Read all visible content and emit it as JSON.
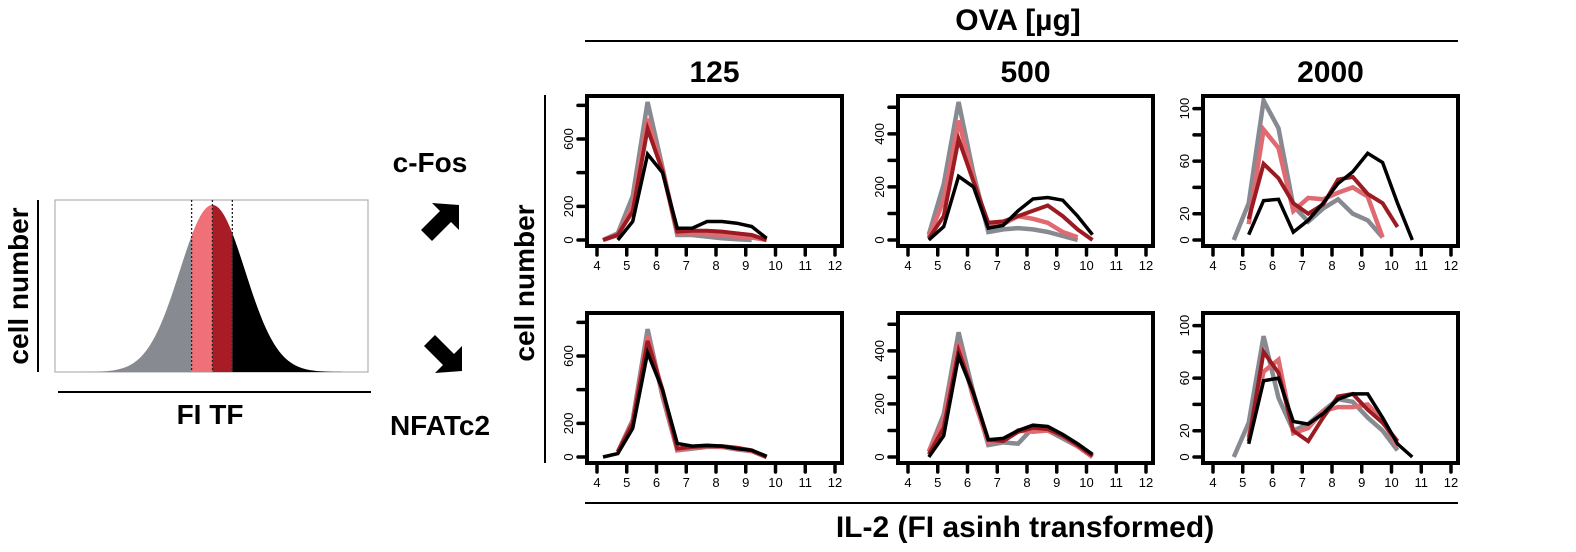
{
  "figure": {
    "top_header": "OVA [µg]",
    "bottom_label": "IL-2 (FI asinh transformed)",
    "grid_ylabel": "cell number",
    "arrow_up_label": "c-Fos",
    "arrow_down_label": "NFATc2"
  },
  "legend_colors": {
    "gray": "#878b91",
    "pink": "#e06a72",
    "darkred": "#9b1b22",
    "black": "#000000"
  },
  "chart_data": [
    {
      "type": "area",
      "id": "tf-histogram",
      "title": "",
      "xlabel": "FI TF",
      "ylabel": "cell number",
      "description": "Normal-shaped histogram of transcription factor fluorescence split into four quantile bins by dotted cut lines",
      "bins": [
        {
          "name": "lowest",
          "color": "#878b91",
          "from": 0.0,
          "to": 0.436
        },
        {
          "name": "low-mid",
          "color": "#f07078",
          "from": 0.436,
          "to": 0.503
        },
        {
          "name": "high-mid",
          "color": "#a81c26",
          "from": 0.503,
          "to": 0.567
        },
        {
          "name": "highest",
          "color": "#000000",
          "from": 0.567,
          "to": 1.0
        }
      ],
      "curve": {
        "mean": 0.503,
        "sd": 0.105
      },
      "cut_lines": [
        0.436,
        0.503,
        0.567
      ]
    },
    {
      "type": "line",
      "id": "panel-cfos-125",
      "row": "c-Fos",
      "title": "125",
      "xlim": [
        4,
        12
      ],
      "ylim": [
        0,
        820
      ],
      "xticks": [
        4,
        5,
        6,
        7,
        8,
        9,
        10,
        11,
        12
      ],
      "yticks": [
        0,
        200,
        400,
        600,
        800
      ],
      "ytick_labels": [
        "0",
        "200",
        "",
        "600",
        ""
      ],
      "series": [
        {
          "name": "gray",
          "x": [
            4.2,
            4.7,
            5.2,
            5.7,
            6.2,
            6.7,
            7.2,
            7.7,
            8.2,
            8.7,
            9.2
          ],
          "y": [
            0,
            40,
            260,
            820,
            430,
            30,
            30,
            20,
            10,
            5,
            0
          ]
        },
        {
          "name": "pink",
          "x": [
            4.2,
            4.7,
            5.2,
            5.7,
            6.2,
            6.7,
            7.2,
            7.7,
            8.2,
            8.7,
            9.2,
            9.7
          ],
          "y": [
            0,
            30,
            200,
            720,
            420,
            40,
            40,
            35,
            30,
            20,
            15,
            0
          ]
        },
        {
          "name": "darkred",
          "x": [
            4.2,
            4.7,
            5.2,
            5.7,
            6.2,
            6.7,
            7.2,
            7.7,
            8.2,
            8.7,
            9.2,
            9.7
          ],
          "y": [
            0,
            30,
            170,
            660,
            410,
            50,
            55,
            55,
            50,
            40,
            30,
            0
          ]
        },
        {
          "name": "black",
          "x": [
            4.7,
            5.2,
            5.7,
            6.2,
            6.7,
            7.2,
            7.7,
            8.2,
            8.7,
            9.2,
            9.7
          ],
          "y": [
            0,
            110,
            510,
            400,
            70,
            70,
            110,
            110,
            100,
            80,
            10
          ]
        }
      ]
    },
    {
      "type": "line",
      "id": "panel-cfos-500",
      "row": "c-Fos",
      "title": "500",
      "xlim": [
        4,
        12
      ],
      "ylim": [
        0,
        520
      ],
      "xticks": [
        4,
        5,
        6,
        7,
        8,
        9,
        10,
        11,
        12
      ],
      "yticks": [
        0,
        100,
        200,
        300,
        400,
        500
      ],
      "ytick_labels": [
        "0",
        "",
        "200",
        "",
        "400",
        ""
      ],
      "series": [
        {
          "name": "gray",
          "x": [
            4.7,
            5.2,
            5.7,
            6.2,
            6.7,
            7.2,
            7.7,
            8.2,
            8.7,
            9.2,
            9.7
          ],
          "y": [
            20,
            210,
            520,
            250,
            30,
            40,
            45,
            40,
            30,
            15,
            0
          ]
        },
        {
          "name": "pink",
          "x": [
            4.7,
            5.2,
            5.7,
            6.2,
            6.7,
            7.2,
            7.7,
            8.2,
            8.7,
            9.2,
            9.7
          ],
          "y": [
            10,
            150,
            450,
            230,
            50,
            60,
            90,
            80,
            65,
            30,
            10
          ]
        },
        {
          "name": "darkred",
          "x": [
            4.7,
            5.2,
            5.7,
            6.2,
            6.7,
            7.2,
            7.7,
            8.2,
            8.7,
            9.2,
            9.7,
            10.2
          ],
          "y": [
            5,
            90,
            380,
            220,
            65,
            70,
            90,
            110,
            130,
            90,
            40,
            0
          ]
        },
        {
          "name": "black",
          "x": [
            4.7,
            5.2,
            5.7,
            6.2,
            6.7,
            7.2,
            7.7,
            8.2,
            8.7,
            9.2,
            9.7,
            10.2
          ],
          "y": [
            0,
            50,
            240,
            200,
            45,
            55,
            110,
            155,
            160,
            150,
            90,
            20
          ]
        }
      ]
    },
    {
      "type": "line",
      "id": "panel-cfos-2000",
      "row": "c-Fos",
      "title": "2000",
      "xlim": [
        4,
        12
      ],
      "ylim": [
        0,
        105
      ],
      "xticks": [
        4,
        5,
        6,
        7,
        8,
        9,
        10,
        11,
        12
      ],
      "yticks": [
        0,
        20,
        40,
        60,
        80,
        100
      ],
      "ytick_labels": [
        "0",
        "20",
        "",
        "60",
        "",
        "100"
      ],
      "series": [
        {
          "name": "gray",
          "x": [
            4.7,
            5.2,
            5.7,
            6.2,
            6.7,
            7.2,
            7.7,
            8.2,
            8.7,
            9.2,
            9.7
          ],
          "y": [
            0,
            28,
            106,
            85,
            26,
            14,
            24,
            31,
            20,
            15,
            2
          ]
        },
        {
          "name": "pink",
          "x": [
            5.2,
            5.7,
            6.2,
            6.7,
            7.2,
            7.7,
            8.2,
            8.7,
            9.2,
            9.7
          ],
          "y": [
            12,
            84,
            70,
            22,
            32,
            31,
            36,
            40,
            33,
            2
          ]
        },
        {
          "name": "darkred",
          "x": [
            5.2,
            5.7,
            6.2,
            6.7,
            7.2,
            7.7,
            8.2,
            8.7,
            9.2,
            9.7,
            10.2
          ],
          "y": [
            16,
            58,
            47,
            28,
            20,
            27,
            46,
            48,
            35,
            28,
            10
          ]
        },
        {
          "name": "black",
          "x": [
            5.2,
            5.7,
            6.2,
            6.7,
            7.2,
            7.7,
            8.2,
            8.7,
            9.2,
            9.7,
            10.2,
            10.7
          ],
          "y": [
            4,
            30,
            31,
            6,
            15,
            28,
            43,
            52,
            66,
            59,
            28,
            0
          ]
        }
      ]
    },
    {
      "type": "line",
      "id": "panel-nfatc2-125",
      "row": "NFATc2",
      "title": "125",
      "xlim": [
        4,
        12
      ],
      "ylim": [
        0,
        820
      ],
      "xticks": [
        4,
        5,
        6,
        7,
        8,
        9,
        10,
        11,
        12
      ],
      "yticks": [
        0,
        200,
        400,
        600,
        800
      ],
      "ytick_labels": [
        "0",
        "200",
        "",
        "600",
        ""
      ],
      "series": [
        {
          "name": "gray",
          "x": [
            4.7,
            5.2,
            5.7,
            6.2,
            6.7,
            7.2,
            7.7,
            8.2,
            8.7,
            9.2,
            9.7
          ],
          "y": [
            30,
            220,
            760,
            360,
            40,
            50,
            60,
            60,
            45,
            35,
            0
          ]
        },
        {
          "name": "pink",
          "x": [
            4.7,
            5.2,
            5.7,
            6.2,
            6.7,
            7.2,
            7.7,
            8.2,
            8.7,
            9.2,
            9.7
          ],
          "y": [
            30,
            210,
            720,
            380,
            40,
            55,
            65,
            60,
            50,
            35,
            0
          ]
        },
        {
          "name": "darkred",
          "x": [
            4.7,
            5.2,
            5.7,
            6.2,
            6.7,
            7.2,
            7.7,
            8.2,
            8.7,
            9.2,
            9.7
          ],
          "y": [
            30,
            200,
            690,
            400,
            50,
            60,
            65,
            65,
            55,
            40,
            0
          ]
        },
        {
          "name": "black",
          "x": [
            4.2,
            4.7,
            5.2,
            5.7,
            6.2,
            6.7,
            7.2,
            7.7,
            8.2,
            8.7,
            9.2,
            9.7
          ],
          "y": [
            0,
            20,
            170,
            620,
            400,
            80,
            65,
            70,
            65,
            50,
            40,
            5
          ]
        }
      ]
    },
    {
      "type": "line",
      "id": "panel-nfatc2-500",
      "row": "NFATc2",
      "title": "500",
      "xlim": [
        4,
        12
      ],
      "ylim": [
        0,
        520
      ],
      "xticks": [
        4,
        5,
        6,
        7,
        8,
        9,
        10,
        11,
        12
      ],
      "yticks": [
        0,
        100,
        200,
        300,
        400,
        500
      ],
      "ytick_labels": [
        "0",
        "",
        "200",
        "",
        "400",
        ""
      ],
      "series": [
        {
          "name": "gray",
          "x": [
            4.7,
            5.2,
            5.7,
            6.2,
            6.7,
            7.2,
            7.7,
            8.2,
            8.7,
            9.2,
            9.7,
            10.2
          ],
          "y": [
            20,
            160,
            470,
            240,
            45,
            55,
            50,
            110,
            100,
            70,
            40,
            5
          ]
        },
        {
          "name": "pink",
          "x": [
            4.7,
            5.2,
            5.7,
            6.2,
            6.7,
            7.2,
            7.7,
            8.2,
            8.7,
            9.2,
            9.7,
            10.2
          ],
          "y": [
            20,
            140,
            430,
            220,
            55,
            60,
            100,
            95,
            100,
            80,
            40,
            0
          ]
        },
        {
          "name": "darkred",
          "x": [
            4.7,
            5.2,
            5.7,
            6.2,
            6.7,
            7.2,
            7.7,
            8.2,
            8.7,
            9.2,
            9.7,
            10.2
          ],
          "y": [
            10,
            110,
            400,
            240,
            65,
            60,
            95,
            110,
            105,
            80,
            45,
            5
          ]
        },
        {
          "name": "black",
          "x": [
            4.7,
            5.2,
            5.7,
            6.2,
            6.7,
            7.2,
            7.7,
            8.2,
            8.7,
            9.2,
            9.7,
            10.2
          ],
          "y": [
            0,
            80,
            380,
            240,
            65,
            70,
            100,
            120,
            115,
            85,
            50,
            10
          ]
        }
      ]
    },
    {
      "type": "line",
      "id": "panel-nfatc2-2000",
      "row": "NFATc2",
      "title": "2000",
      "xlim": [
        4,
        12
      ],
      "ylim": [
        0,
        105
      ],
      "xticks": [
        4,
        5,
        6,
        7,
        8,
        9,
        10,
        11,
        12
      ],
      "yticks": [
        0,
        20,
        40,
        60,
        80,
        100
      ],
      "ytick_labels": [
        "0",
        "20",
        "",
        "60",
        "",
        "100"
      ],
      "series": [
        {
          "name": "gray",
          "x": [
            4.7,
            5.2,
            5.7,
            6.2,
            6.7,
            7.2,
            7.7,
            8.2,
            8.7,
            9.2,
            9.7,
            10.2
          ],
          "y": [
            0,
            26,
            92,
            45,
            20,
            25,
            35,
            44,
            42,
            30,
            20,
            5
          ]
        },
        {
          "name": "pink",
          "x": [
            5.2,
            5.7,
            6.2,
            6.7,
            7.2,
            7.7,
            8.2,
            8.7,
            9.2,
            9.7,
            10.2
          ],
          "y": [
            15,
            65,
            74,
            18,
            22,
            35,
            38,
            38,
            40,
            28,
            8
          ]
        },
        {
          "name": "darkred",
          "x": [
            5.2,
            5.7,
            6.2,
            6.7,
            7.2,
            7.7,
            8.2,
            8.7,
            9.2,
            9.7,
            10.2
          ],
          "y": [
            12,
            80,
            64,
            20,
            12,
            30,
            46,
            48,
            36,
            26,
            12
          ]
        },
        {
          "name": "black",
          "x": [
            5.2,
            5.7,
            6.2,
            6.7,
            7.2,
            7.7,
            8.2,
            8.7,
            9.2,
            9.7,
            10.2,
            10.7
          ],
          "y": [
            10,
            58,
            60,
            27,
            25,
            33,
            44,
            48,
            48,
            30,
            10,
            0
          ]
        }
      ]
    }
  ]
}
